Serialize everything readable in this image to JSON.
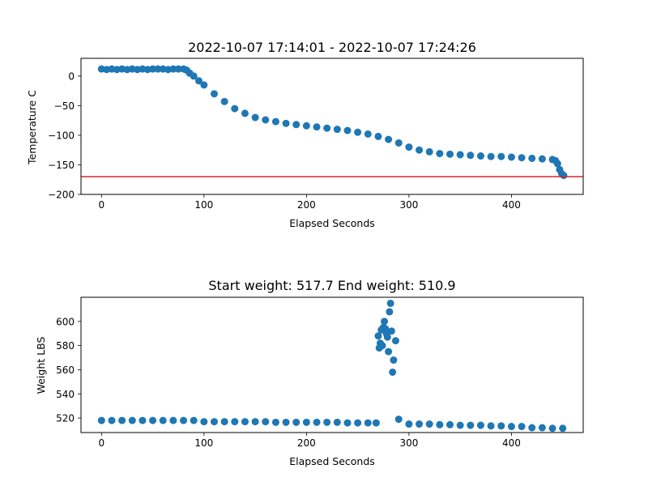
{
  "chart_data": [
    {
      "type": "scatter",
      "title": "2022-10-07 17:14:01 - 2022-10-07 17:24:26",
      "xlabel": "Elapsed Seconds",
      "ylabel": "Temperature C",
      "xlim": [
        -20,
        470
      ],
      "ylim": [
        -200,
        30
      ],
      "xticks": [
        0,
        100,
        200,
        300,
        400
      ],
      "yticks": [
        -200,
        -150,
        -100,
        -50,
        0
      ],
      "xtick_labels": [
        "0",
        "100",
        "200",
        "300",
        "400"
      ],
      "ytick_labels": [
        "−200",
        "−150",
        "−100",
        "−50",
        "0"
      ],
      "marker_color": "#1f77b4",
      "grid": false,
      "reference_line": {
        "y": -170,
        "color": "#d62728"
      },
      "series": [
        {
          "x": [
            0,
            5,
            10,
            15,
            20,
            25,
            30,
            35,
            40,
            45,
            50,
            55,
            60,
            65,
            70,
            75,
            80,
            83,
            86,
            90,
            95,
            100,
            110,
            120,
            130,
            140,
            150,
            160,
            170,
            180,
            190,
            200,
            210,
            220,
            230,
            240,
            250,
            260,
            270,
            280,
            290,
            300,
            310,
            320,
            330,
            340,
            350,
            360,
            370,
            380,
            390,
            400,
            410,
            420,
            430,
            440,
            443,
            445,
            447,
            449,
            451
          ],
          "y": [
            12,
            11,
            12,
            11,
            12,
            11,
            12,
            11,
            12,
            11,
            12,
            12,
            12,
            11,
            12,
            12,
            12,
            10,
            5,
            0,
            -8,
            -15,
            -30,
            -43,
            -55,
            -63,
            -70,
            -74,
            -77,
            -80,
            -82,
            -84,
            -86,
            -88,
            -90,
            -92,
            -95,
            -98,
            -102,
            -107,
            -113,
            -120,
            -125,
            -128,
            -131,
            -132,
            -133,
            -134,
            -135,
            -136,
            -136,
            -137,
            -138,
            -139,
            -140,
            -141,
            -143,
            -148,
            -158,
            -165,
            -168
          ]
        }
      ]
    },
    {
      "type": "scatter",
      "title": "Start weight: 517.7 End weight: 510.9",
      "xlabel": "Elapsed Seconds",
      "ylabel": "Weight LBS",
      "xlim": [
        -20,
        470
      ],
      "ylim": [
        508,
        620
      ],
      "xticks": [
        0,
        100,
        200,
        300,
        400
      ],
      "yticks": [
        520,
        540,
        560,
        580,
        600
      ],
      "xtick_labels": [
        "0",
        "100",
        "200",
        "300",
        "400"
      ],
      "ytick_labels": [
        "520",
        "540",
        "560",
        "580",
        "600"
      ],
      "marker_color": "#1f77b4",
      "grid": false,
      "series": [
        {
          "x": [
            0,
            10,
            20,
            30,
            40,
            50,
            60,
            70,
            80,
            90,
            100,
            110,
            120,
            130,
            140,
            150,
            160,
            170,
            180,
            190,
            200,
            210,
            220,
            230,
            240,
            250,
            260,
            268,
            270,
            271,
            272,
            273,
            274,
            275,
            276,
            277,
            278,
            279,
            280,
            281,
            282,
            283,
            284,
            285,
            287,
            290,
            300,
            310,
            320,
            330,
            340,
            350,
            360,
            370,
            380,
            390,
            400,
            410,
            420,
            430,
            440,
            450
          ],
          "y": [
            518,
            518,
            518,
            518,
            518,
            518,
            518,
            518,
            518,
            518,
            517,
            517,
            517,
            517,
            517,
            517,
            517,
            516.5,
            516.5,
            516.5,
            516.5,
            516.5,
            516.5,
            516.5,
            516,
            516,
            516,
            516,
            588,
            578,
            582,
            593,
            580,
            595,
            600,
            594,
            590,
            587,
            575,
            608,
            615,
            592,
            558,
            568,
            584,
            519,
            515,
            515,
            515,
            514.5,
            514.5,
            514,
            514,
            514,
            513.5,
            513.5,
            513,
            513,
            512,
            512,
            511.5,
            511.5
          ]
        }
      ]
    }
  ]
}
